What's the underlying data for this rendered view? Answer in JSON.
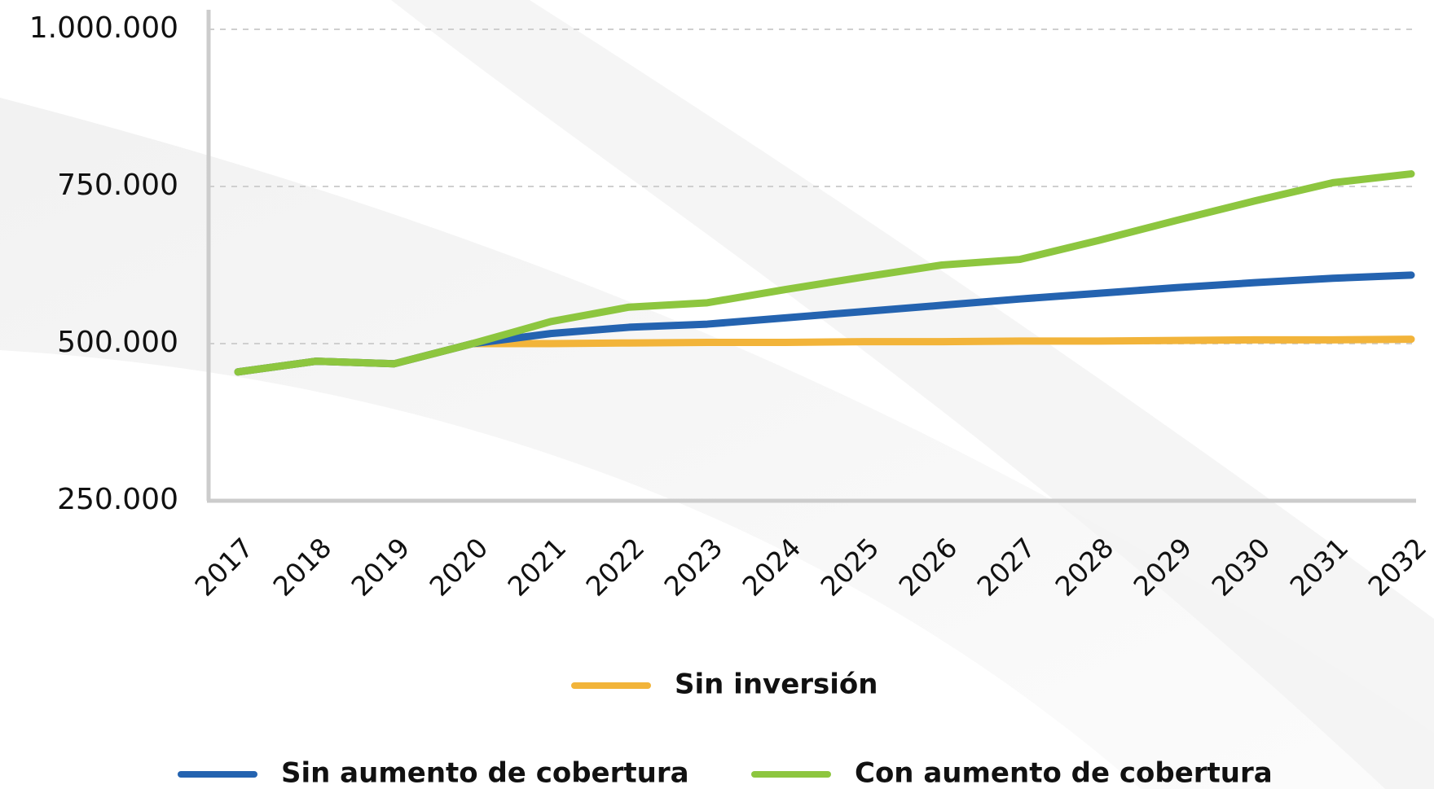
{
  "chart_data": {
    "type": "line",
    "categories": [
      "2017",
      "2018",
      "2019",
      "2020",
      "2021",
      "2022",
      "2023",
      "2024",
      "2025",
      "2026",
      "2027",
      "2028",
      "2029",
      "2030",
      "2031",
      "2032"
    ],
    "series": [
      {
        "name": "Sin inversión",
        "color": "#f2b43a",
        "values": [
          455000,
          472000,
          468000,
          500000,
          500000,
          501000,
          502000,
          502000,
          503000,
          503000,
          504000,
          504000,
          505000,
          506000,
          506000,
          507000
        ]
      },
      {
        "name": "Sin aumento de cobertura",
        "color": "#2463b0",
        "values": [
          455000,
          472000,
          468000,
          500000,
          516000,
          526000,
          531000,
          541000,
          551000,
          561000,
          571000,
          580000,
          589000,
          597000,
          604000,
          609000
        ]
      },
      {
        "name": "Con aumento de cobertura",
        "color": "#8dc63f",
        "values": [
          455000,
          472000,
          468000,
          500000,
          535000,
          558000,
          565000,
          586000,
          606000,
          625000,
          634000,
          664000,
          696000,
          727000,
          756000,
          770000
        ]
      }
    ],
    "ylim": [
      250000,
      1000000
    ],
    "yticks": [
      {
        "value": 250000,
        "label": "250.000"
      },
      {
        "value": 500000,
        "label": "500.000"
      },
      {
        "value": 750000,
        "label": "750.000"
      },
      {
        "value": 1000000,
        "label": "1.000.000"
      }
    ],
    "grid": true
  }
}
